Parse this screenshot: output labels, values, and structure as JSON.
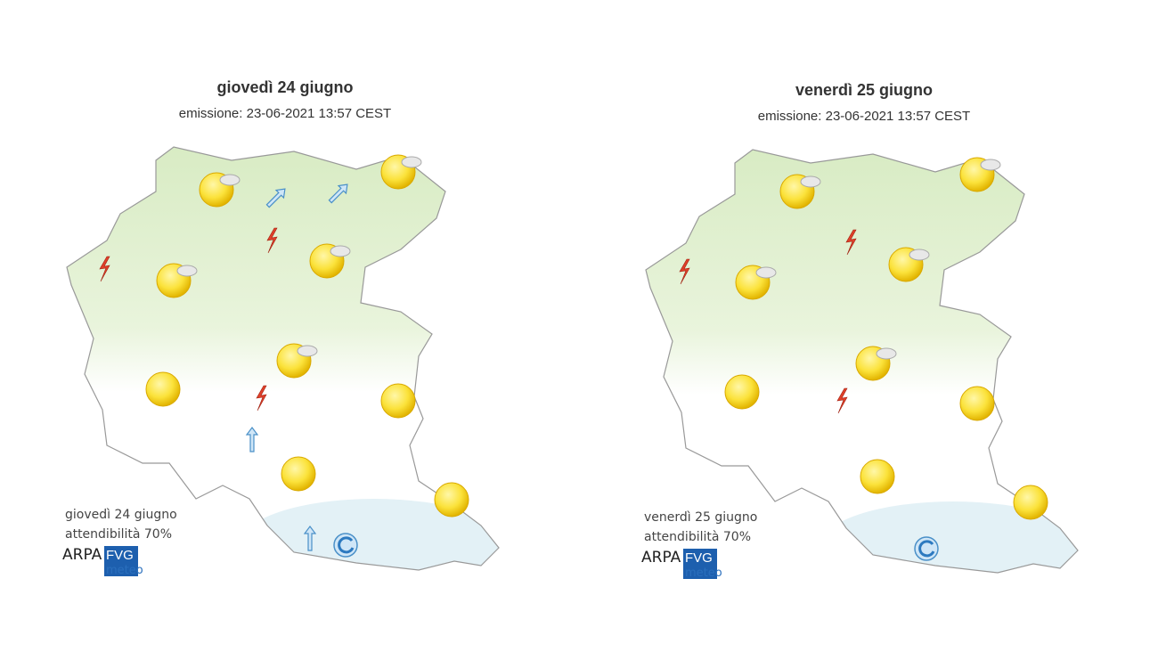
{
  "panels": [
    {
      "title": "giovedì 24 giugno",
      "subtitle": "emissione: 23-06-2021 13:57 CEST",
      "footer": [
        "giovedì 24 giugno",
        "attendibilità 70%"
      ],
      "logo": {
        "arpa": "ARPA",
        "fvg": "FVG",
        "meteo": "meteo"
      }
    },
    {
      "title": "venerdì 25 giugno",
      "subtitle": "emissione: 23-06-2021 13:57 CEST",
      "footer": [
        "venerdì 25 giugno",
        "attendibilità 70%"
      ],
      "logo": {
        "arpa": "ARPA",
        "fvg": "FVG",
        "meteo": "meteo"
      }
    }
  ]
}
